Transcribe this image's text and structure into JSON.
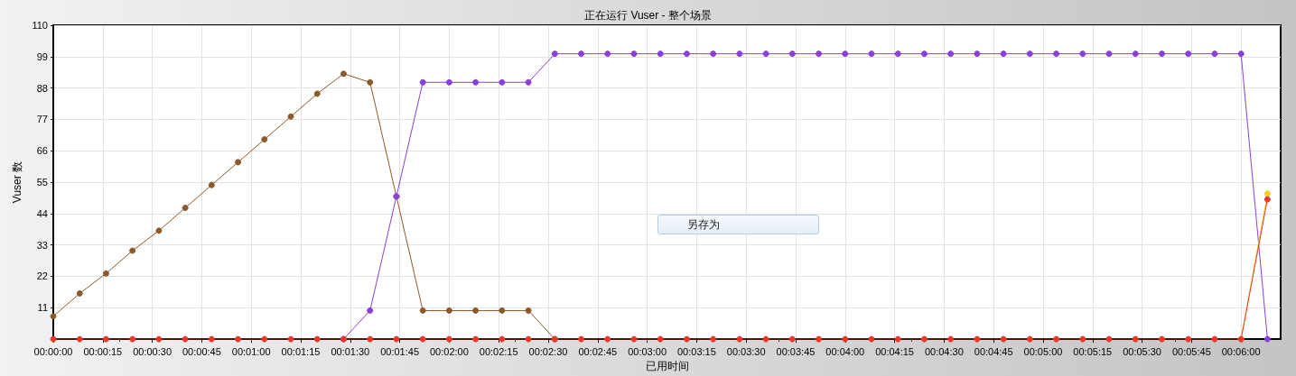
{
  "chart_data": {
    "type": "line",
    "title": "正在运行 Vuser - 整个场景",
    "xlabel": "已用时间",
    "ylabel": "Vuser 数",
    "annotations": [
      "另存为"
    ],
    "x": [
      0,
      8,
      16,
      24,
      32,
      40,
      48,
      56,
      64,
      72,
      80,
      88,
      96,
      104,
      112,
      120,
      128,
      136,
      144,
      152,
      160,
      168,
      176,
      184,
      192,
      200,
      208,
      216,
      224,
      232,
      240,
      248,
      256,
      264,
      272,
      280,
      288,
      296,
      304,
      312,
      320,
      328,
      336,
      344,
      352,
      360,
      368
    ],
    "series": [
      {
        "color": "#8b5a2b",
        "values": [
          8,
          16,
          23,
          31,
          38,
          46,
          54,
          62,
          70,
          78,
          86,
          93,
          90,
          50,
          10,
          10,
          10,
          10,
          10,
          0,
          null,
          null,
          null,
          null,
          null,
          null,
          null,
          null,
          null,
          null,
          null,
          null,
          null,
          null,
          null,
          null,
          null,
          null,
          null,
          null,
          null,
          null,
          null,
          null,
          null,
          null,
          null
        ]
      },
      {
        "color": "#8a3fd6",
        "values": [
          null,
          null,
          null,
          null,
          null,
          null,
          null,
          null,
          null,
          null,
          null,
          0,
          10,
          50,
          90,
          90,
          90,
          90,
          90,
          100,
          100,
          100,
          100,
          100,
          100,
          100,
          100,
          100,
          100,
          100,
          100,
          100,
          100,
          100,
          100,
          100,
          100,
          100,
          100,
          100,
          100,
          100,
          100,
          100,
          100,
          100,
          0
        ]
      },
      {
        "color": "#f0d020",
        "values": [
          null,
          null,
          null,
          null,
          null,
          null,
          null,
          null,
          null,
          null,
          null,
          null,
          null,
          null,
          null,
          null,
          null,
          null,
          null,
          null,
          null,
          null,
          null,
          null,
          null,
          null,
          null,
          null,
          null,
          null,
          null,
          null,
          null,
          null,
          null,
          null,
          null,
          null,
          null,
          null,
          null,
          null,
          null,
          null,
          null,
          0,
          51
        ]
      },
      {
        "color": "#e8382a",
        "values": [
          0,
          0,
          0,
          0,
          0,
          0,
          0,
          0,
          0,
          0,
          0,
          0,
          0,
          0,
          0,
          0,
          0,
          0,
          0,
          0,
          0,
          0,
          0,
          0,
          0,
          0,
          0,
          0,
          0,
          0,
          0,
          0,
          0,
          0,
          0,
          0,
          0,
          0,
          0,
          0,
          0,
          0,
          0,
          0,
          0,
          0,
          49
        ]
      }
    ],
    "xlim": [
      0,
      372
    ],
    "ylim": [
      0,
      110
    ],
    "xticks": [
      {
        "value": 0,
        "label": "00:00:00"
      },
      {
        "value": 15,
        "label": "00:00:15"
      },
      {
        "value": 30,
        "label": "00:00:30"
      },
      {
        "value": 45,
        "label": "00:00:45"
      },
      {
        "value": 60,
        "label": "00:01:00"
      },
      {
        "value": 75,
        "label": "00:01:15"
      },
      {
        "value": 90,
        "label": "00:01:30"
      },
      {
        "value": 105,
        "label": "00:01:45"
      },
      {
        "value": 120,
        "label": "00:02:00"
      },
      {
        "value": 135,
        "label": "00:02:15"
      },
      {
        "value": 150,
        "label": "00:02:30"
      },
      {
        "value": 165,
        "label": "00:02:45"
      },
      {
        "value": 180,
        "label": "00:03:00"
      },
      {
        "value": 195,
        "label": "00:03:15"
      },
      {
        "value": 210,
        "label": "00:03:30"
      },
      {
        "value": 225,
        "label": "00:03:45"
      },
      {
        "value": 240,
        "label": "00:04:00"
      },
      {
        "value": 255,
        "label": "00:04:15"
      },
      {
        "value": 270,
        "label": "00:04:30"
      },
      {
        "value": 285,
        "label": "00:04:45"
      },
      {
        "value": 300,
        "label": "00:05:00"
      },
      {
        "value": 315,
        "label": "00:05:15"
      },
      {
        "value": 330,
        "label": "00:05:30"
      },
      {
        "value": 345,
        "label": "00:05:45"
      },
      {
        "value": 360,
        "label": "00:06:00"
      }
    ],
    "yticks": [
      {
        "value": 0,
        "label": null
      },
      11,
      22,
      33,
      44,
      55,
      66,
      77,
      88,
      99,
      110
    ],
    "grid": true,
    "marker": "circle",
    "line_style": "solid"
  }
}
